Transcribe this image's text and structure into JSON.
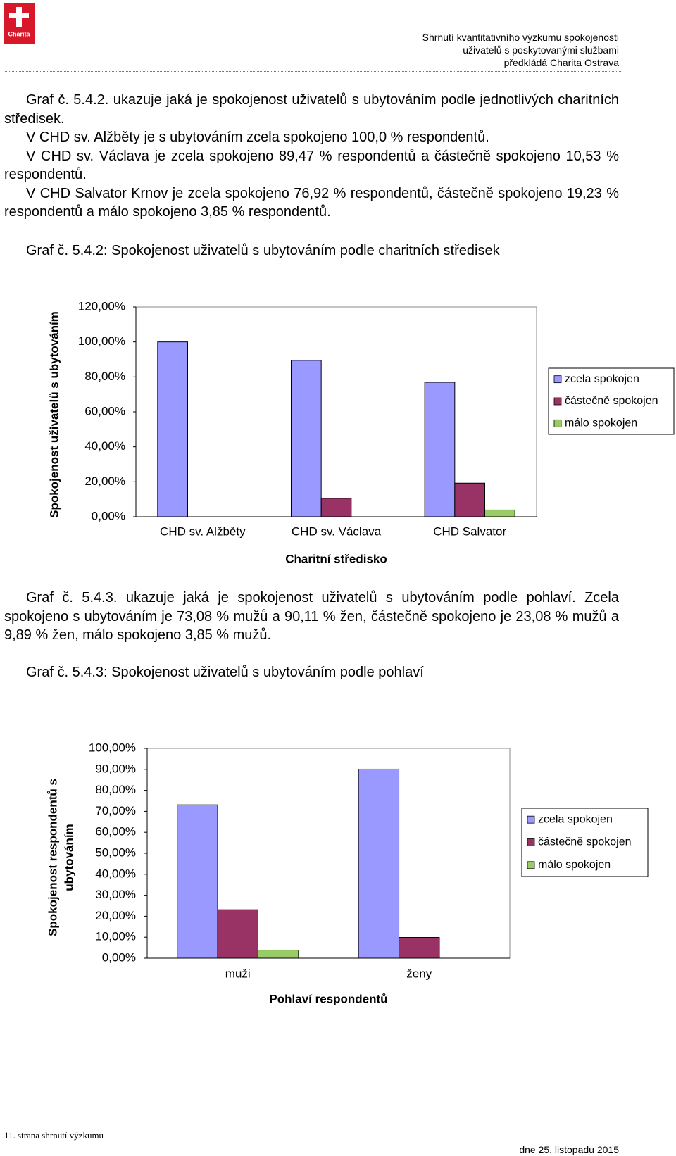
{
  "header": {
    "logo_text": "Charita",
    "lines": [
      "Shrnutí kvantitativního výzkumu spokojenosti",
      "uživatelů s poskytovanými službami",
      "předkládá Charita Ostrava"
    ]
  },
  "section1": {
    "paragraphs": [
      "Graf č. 5.4.2. ukazuje jaká je spokojenost uživatelů s ubytováním podle jednotlivých charitních středisek.",
      "V CHD sv. Alžběty je s ubytováním zcela spokojeno 100,0 % respondentů.",
      "V CHD sv. Václava je zcela spokojeno 89,47 % respondentů a částečně spokojeno 10,53 % respondentů.",
      "V CHD Salvator Krnov je zcela spokojeno 76,92 % respondentů, částečně spokojeno 19,23 % respondentů a málo spokojeno 3,85 % respondentů."
    ],
    "caption": "Graf č. 5.4.2: Spokojenost uživatelů s ubytováním podle charitních středisek"
  },
  "section2": {
    "paragraphs": [
      "Graf č. 5.4.3. ukazuje jaká je spokojenost uživatelů s ubytováním podle pohlaví. Zcela spokojeno s ubytováním je 73,08 % mužů a 90,11 % žen, částečně spokojeno je 23,08 % mužů a 9,89 % žen, málo spokojeno 3,85 % mužů."
    ],
    "caption": "Graf č. 5.4.3: Spokojenost uživatelů s ubytováním podle pohlaví"
  },
  "chart_data": [
    {
      "type": "bar",
      "y_label": [
        "Spokojenost uživatelů s ubytováním"
      ],
      "x_label": "Charitní středisko",
      "categories": [
        "CHD sv. Alžběty",
        "CHD sv. Václava",
        "CHD Salvator"
      ],
      "series": [
        {
          "name": "zcela spokojen",
          "color": "#9999ff",
          "values": [
            100,
            89.47,
            76.92
          ]
        },
        {
          "name": "částečně spokojen",
          "color": "#993366",
          "values": [
            0,
            10.53,
            19.23
          ]
        },
        {
          "name": "málo spokojen",
          "color": "#99cc66",
          "values": [
            0,
            0,
            3.85
          ]
        }
      ],
      "ylim": [
        0,
        120
      ],
      "yticks": [
        {
          "value": 0,
          "label": "0,00%"
        },
        {
          "value": 20,
          "label": "20,00%"
        },
        {
          "value": 40,
          "label": "40,00%"
        },
        {
          "value": 60,
          "label": "60,00%"
        },
        {
          "value": 80,
          "label": "80,00%"
        },
        {
          "value": 100,
          "label": "100,00%"
        },
        {
          "value": 120,
          "label": "120,00%"
        }
      ],
      "legend": "right",
      "grid": false
    },
    {
      "type": "bar",
      "y_label": [
        "Spokojenost respondentů s",
        "ubytováním"
      ],
      "x_label": "Pohlaví respondentů",
      "categories": [
        "muži",
        "ženy"
      ],
      "series": [
        {
          "name": "zcela spokojen",
          "color": "#9999ff",
          "values": [
            73.08,
            90.11
          ]
        },
        {
          "name": "částečně spokojen",
          "color": "#993366",
          "values": [
            23.08,
            9.89
          ]
        },
        {
          "name": "málo spokojen",
          "color": "#99cc66",
          "values": [
            3.85,
            0
          ]
        }
      ],
      "ylim": [
        0,
        100
      ],
      "yticks": [
        {
          "value": 0,
          "label": "0,00%"
        },
        {
          "value": 10,
          "label": "10,00%"
        },
        {
          "value": 20,
          "label": "20,00%"
        },
        {
          "value": 30,
          "label": "30,00%"
        },
        {
          "value": 40,
          "label": "40,00%"
        },
        {
          "value": 50,
          "label": "50,00%"
        },
        {
          "value": 60,
          "label": "60,00%"
        },
        {
          "value": 70,
          "label": "70,00%"
        },
        {
          "value": 80,
          "label": "80,00%"
        },
        {
          "value": 90,
          "label": "90,00%"
        },
        {
          "value": 100,
          "label": "100,00%"
        }
      ],
      "legend": "right",
      "grid": false
    }
  ],
  "footer": {
    "page": "11. strana shrnutí výzkumu",
    "date": "dne 25. listopadu 2015"
  }
}
